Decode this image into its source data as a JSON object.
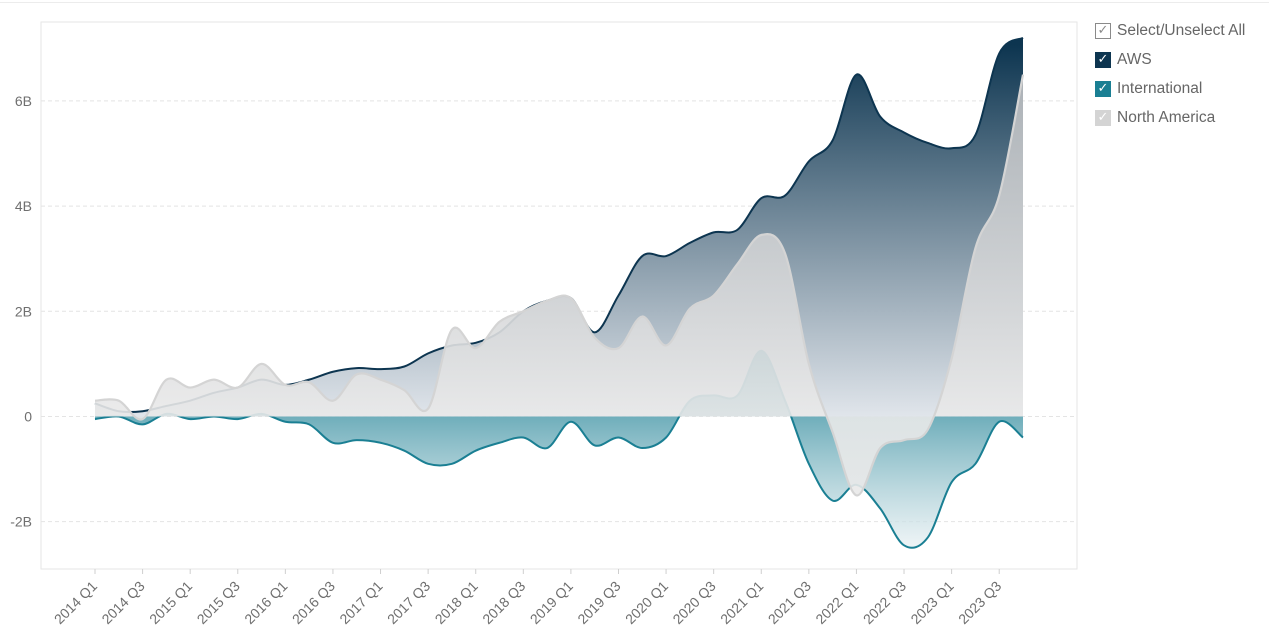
{
  "legend": {
    "items": [
      {
        "label": "Select/Unselect All",
        "checked": true,
        "box_fill": "#ffffff",
        "box_border": "#8a8a8a",
        "check_color": "#8a8a8a"
      },
      {
        "label": "AWS",
        "checked": true,
        "box_fill": "#0d3550",
        "box_border": "#0d3550",
        "check_color": "#ffffff"
      },
      {
        "label": "International",
        "checked": true,
        "box_fill": "#1a7f93",
        "box_border": "#1a7f93",
        "check_color": "#ffffff"
      },
      {
        "label": "North America",
        "checked": true,
        "box_fill": "#d4d4d4",
        "box_border": "#d4d4d4",
        "check_color": "#ffffff"
      }
    ]
  },
  "chart_data": {
    "type": "area",
    "title": "",
    "xlabel": "",
    "ylabel": "",
    "ylim": [
      -2.9,
      7.5
    ],
    "yticks": [
      -2,
      0,
      2,
      4,
      6
    ],
    "ytick_labels": [
      "-2B",
      "0",
      "2B",
      "4B",
      "6B"
    ],
    "grid": true,
    "legend_position": "right",
    "categories": [
      "2014 Q1",
      "2014 Q2",
      "2014 Q3",
      "2014 Q4",
      "2015 Q1",
      "2015 Q2",
      "2015 Q3",
      "2015 Q4",
      "2016 Q1",
      "2016 Q2",
      "2016 Q3",
      "2016 Q4",
      "2017 Q1",
      "2017 Q2",
      "2017 Q3",
      "2017 Q4",
      "2018 Q1",
      "2018 Q2",
      "2018 Q3",
      "2018 Q4",
      "2019 Q1",
      "2019 Q2",
      "2019 Q3",
      "2019 Q4",
      "2020 Q1",
      "2020 Q2",
      "2020 Q3",
      "2020 Q4",
      "2021 Q1",
      "2021 Q2",
      "2021 Q3",
      "2021 Q4",
      "2022 Q1",
      "2022 Q2",
      "2022 Q3",
      "2022 Q4",
      "2023 Q1",
      "2023 Q2",
      "2023 Q3",
      "2023 Q4"
    ],
    "tick_labels": [
      "2014 Q1",
      "2014 Q3",
      "2015 Q1",
      "2015 Q3",
      "2016 Q1",
      "2016 Q3",
      "2017 Q1",
      "2017 Q3",
      "2018 Q1",
      "2018 Q3",
      "2019 Q1",
      "2019 Q3",
      "2020 Q1",
      "2020 Q3",
      "2021 Q1",
      "2021 Q3",
      "2022 Q1",
      "2022 Q3",
      "2023 Q1",
      "2023 Q3"
    ],
    "series": [
      {
        "name": "AWS",
        "color": "#0d3550",
        "values": [
          0.25,
          0.1,
          0.1,
          0.2,
          0.3,
          0.45,
          0.55,
          0.7,
          0.6,
          0.7,
          0.85,
          0.92,
          0.9,
          0.95,
          1.2,
          1.35,
          1.4,
          1.6,
          2.0,
          2.2,
          2.25,
          1.6,
          2.3,
          3.05,
          3.05,
          3.3,
          3.5,
          3.55,
          4.15,
          4.2,
          4.85,
          5.25,
          6.5,
          5.7,
          5.4,
          5.2,
          5.1,
          5.35,
          6.9,
          7.2
        ]
      },
      {
        "name": "International",
        "color": "#1a7f93",
        "values": [
          -0.05,
          0.0,
          -0.15,
          0.05,
          -0.05,
          0.0,
          -0.05,
          0.05,
          -0.1,
          -0.15,
          -0.5,
          -0.45,
          -0.5,
          -0.65,
          -0.9,
          -0.9,
          -0.65,
          -0.5,
          -0.4,
          -0.6,
          -0.1,
          -0.55,
          -0.4,
          -0.6,
          -0.4,
          0.3,
          0.4,
          0.4,
          1.25,
          0.3,
          -0.9,
          -1.6,
          -1.3,
          -1.75,
          -2.45,
          -2.3,
          -1.25,
          -0.9,
          -0.1,
          -0.4
        ]
      },
      {
        "name": "North America",
        "color": "#d4d4d4",
        "values": [
          0.3,
          0.3,
          -0.05,
          0.7,
          0.55,
          0.7,
          0.55,
          1.0,
          0.6,
          0.65,
          0.3,
          0.8,
          0.7,
          0.5,
          0.15,
          1.65,
          1.3,
          1.8,
          2.0,
          2.2,
          2.25,
          1.5,
          1.3,
          1.9,
          1.35,
          2.05,
          2.3,
          2.9,
          3.45,
          3.1,
          1.0,
          -0.3,
          -1.5,
          -0.6,
          -0.45,
          -0.25,
          1.1,
          3.2,
          4.2,
          6.5
        ]
      }
    ]
  }
}
